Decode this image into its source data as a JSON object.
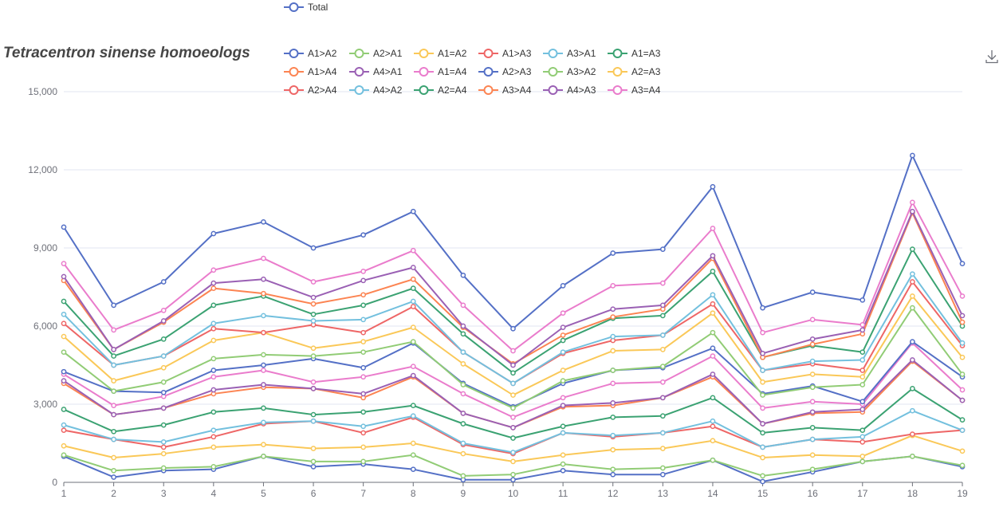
{
  "toolbar": {
    "download_icon": "download-icon"
  },
  "colors": {
    "palette": [
      "#5470c6",
      "#91cc75",
      "#fac858",
      "#ee6666",
      "#73c0de",
      "#3ba272",
      "#fc8452",
      "#9a60b4",
      "#ea7ccc"
    ],
    "axis": "#6e7079",
    "grid": "#e0e6f1"
  },
  "chart_data": {
    "type": "line",
    "title": "Tetracentron sinense homoeologs",
    "xlabel": "",
    "ylabel": "",
    "ylim": [
      0,
      15000
    ],
    "yticks": [
      "0",
      "3,000",
      "6,000",
      "9,000",
      "12,000",
      "15,000"
    ],
    "grid": "horizontal",
    "legend_position": "top",
    "x": [
      "1",
      "2",
      "3",
      "4",
      "5",
      "6",
      "7",
      "8",
      "9",
      "10",
      "11",
      "12",
      "13",
      "14",
      "15",
      "16",
      "17",
      "18",
      "19"
    ],
    "series": [
      {
        "name": "A1>A2",
        "color": "#5470c6",
        "values": [
          1000,
          200,
          450,
          500,
          1000,
          600,
          700,
          500,
          100,
          100,
          450,
          300,
          300,
          850,
          30,
          400,
          800,
          1000,
          600
        ]
      },
      {
        "name": "A2>A1",
        "color": "#91cc75",
        "values": [
          1050,
          450,
          550,
          600,
          1000,
          800,
          800,
          1050,
          250,
          300,
          700,
          500,
          550,
          850,
          250,
          500,
          800,
          1000,
          650
        ]
      },
      {
        "name": "A1=A2",
        "color": "#fac858",
        "values": [
          1400,
          950,
          1100,
          1350,
          1450,
          1300,
          1350,
          1500,
          1100,
          800,
          1050,
          1250,
          1300,
          1600,
          950,
          1050,
          1000,
          1800,
          1200
        ]
      },
      {
        "name": "A1>A3",
        "color": "#ee6666",
        "values": [
          2000,
          1650,
          1350,
          1750,
          2250,
          2350,
          1900,
          2500,
          1450,
          1100,
          1900,
          1750,
          1900,
          2150,
          1350,
          1650,
          1550,
          1850,
          2000
        ]
      },
      {
        "name": "A3>A1",
        "color": "#73c0de",
        "values": [
          2200,
          1650,
          1550,
          2000,
          2300,
          2350,
          2150,
          2550,
          1500,
          1150,
          1900,
          1800,
          1900,
          2350,
          1350,
          1650,
          1750,
          2750,
          2000
        ]
      },
      {
        "name": "A1=A3",
        "color": "#3ba272",
        "values": [
          2800,
          1950,
          2200,
          2700,
          2850,
          2600,
          2700,
          2950,
          2250,
          1700,
          2150,
          2500,
          2550,
          3250,
          1900,
          2100,
          2000,
          3600,
          2400
        ]
      },
      {
        "name": "A1>A4",
        "color": "#fc8452",
        "values": [
          3800,
          2600,
          2850,
          3400,
          3650,
          3600,
          3250,
          4050,
          2650,
          2100,
          2900,
          2950,
          3250,
          4050,
          2250,
          2650,
          2700,
          4650,
          3150
        ]
      },
      {
        "name": "A4>A1",
        "color": "#9a60b4",
        "values": [
          3900,
          2600,
          2850,
          3550,
          3750,
          3600,
          3400,
          4100,
          2650,
          2100,
          2950,
          3050,
          3250,
          4150,
          2250,
          2700,
          2800,
          4700,
          3150
        ]
      },
      {
        "name": "A1=A4",
        "color": "#ea7ccc",
        "values": [
          4150,
          2950,
          3300,
          4050,
          4300,
          3850,
          4050,
          4450,
          3400,
          2500,
          3250,
          3800,
          3850,
          4850,
          2850,
          3100,
          3000,
          5350,
          3550
        ]
      },
      {
        "name": "A2>A3",
        "color": "#5470c6",
        "values": [
          4250,
          3500,
          3450,
          4300,
          4500,
          4750,
          4400,
          5350,
          3800,
          2900,
          3800,
          4300,
          4400,
          5150,
          3400,
          3700,
          3100,
          5400,
          4050
        ]
      },
      {
        "name": "A3>A2",
        "color": "#91cc75",
        "values": [
          5000,
          3500,
          3850,
          4750,
          4900,
          4850,
          5000,
          5400,
          3750,
          2850,
          3900,
          4300,
          4450,
          5750,
          3350,
          3650,
          3750,
          6700,
          4150
        ]
      },
      {
        "name": "A2=A3",
        "color": "#fac858",
        "values": [
          5600,
          3900,
          4400,
          5450,
          5750,
          5150,
          5400,
          5950,
          4550,
          3350,
          4300,
          5050,
          5100,
          6500,
          3850,
          4150,
          4050,
          7150,
          4800
        ]
      },
      {
        "name": "A2>A4",
        "color": "#ee6666",
        "values": [
          6100,
          4500,
          4850,
          5900,
          5750,
          6050,
          5750,
          6750,
          5000,
          3800,
          4950,
          5450,
          5650,
          6850,
          4300,
          4550,
          4300,
          7700,
          5250
        ]
      },
      {
        "name": "A4>A2",
        "color": "#73c0de",
        "values": [
          6450,
          4500,
          4850,
          6100,
          6400,
          6200,
          6250,
          6950,
          5000,
          3800,
          5000,
          5600,
          5650,
          7200,
          4300,
          4650,
          4700,
          8000,
          5350
        ]
      },
      {
        "name": "A2=A4",
        "color": "#3ba272",
        "values": [
          6950,
          4850,
          5500,
          6800,
          7150,
          6450,
          6800,
          7450,
          5700,
          4200,
          5450,
          6300,
          6400,
          8100,
          4800,
          5250,
          5000,
          8950,
          6000
        ]
      },
      {
        "name": "A3>A4",
        "color": "#fc8452",
        "values": [
          7750,
          5100,
          6150,
          7450,
          7250,
          6850,
          7200,
          7800,
          5950,
          4550,
          5650,
          6350,
          6650,
          8600,
          4800,
          5300,
          5700,
          10350,
          6150
        ]
      },
      {
        "name": "A4>A3",
        "color": "#9a60b4",
        "values": [
          7900,
          5100,
          6200,
          7650,
          7800,
          7100,
          7750,
          8250,
          6000,
          4500,
          5950,
          6650,
          6800,
          8700,
          4950,
          5500,
          5850,
          10400,
          6400
        ]
      },
      {
        "name": "A3=A4",
        "color": "#ea7ccc",
        "values": [
          8400,
          5850,
          6600,
          8150,
          8600,
          7700,
          8100,
          8900,
          6800,
          5050,
          6500,
          7550,
          7650,
          9750,
          5750,
          6250,
          6050,
          10750,
          7150
        ]
      },
      {
        "name": "Total",
        "color": "#5470c6",
        "values": [
          9800,
          6800,
          7700,
          9550,
          10000,
          9000,
          9500,
          10400,
          7950,
          5900,
          7550,
          8800,
          8950,
          11350,
          6700,
          7300,
          7000,
          12550,
          8400
        ]
      }
    ]
  }
}
